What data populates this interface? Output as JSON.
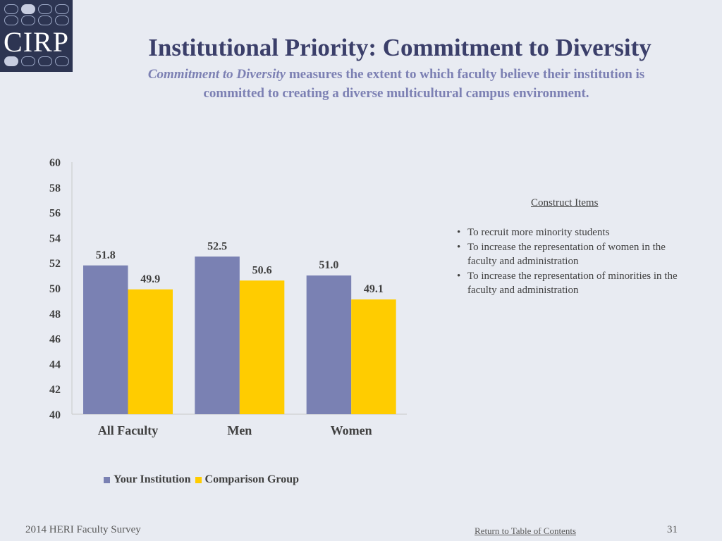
{
  "logo": {
    "text": "CIRP"
  },
  "title": "Institutional Priority: Commitment to Diversity",
  "subtitle": {
    "emphasis": "Commitment to Diversity",
    "line1_rest": " measures the extent to which faculty believe their institution is",
    "line2": "committed to creating a diverse multicultural campus environment."
  },
  "colors": {
    "your_institution": "#7a81b3",
    "comparison_group": "#ffcc00"
  },
  "chart_data": {
    "type": "bar",
    "categories": [
      "All Faculty",
      "Men",
      "Women"
    ],
    "series": [
      {
        "name": "Your Institution",
        "values": [
          51.8,
          52.5,
          51.0
        ],
        "labels": [
          "51.8",
          "52.5",
          "51.0"
        ]
      },
      {
        "name": "Comparison Group",
        "values": [
          49.9,
          50.6,
          49.1
        ],
        "labels": [
          "49.9",
          "50.6",
          "49.1"
        ]
      }
    ],
    "ylim": [
      40,
      60
    ],
    "yticks": [
      "40",
      "42",
      "44",
      "46",
      "48",
      "50",
      "52",
      "54",
      "56",
      "58",
      "60"
    ],
    "title": "",
    "xlabel": "",
    "ylabel": "",
    "legend": "bottom"
  },
  "construct": {
    "title": "Construct Items",
    "items": [
      "To recruit more minority students",
      "To increase the representation of women in the faculty and administration",
      "To increase the representation of minorities in the faculty and administration"
    ]
  },
  "footer": {
    "survey": "2014 HERI Faculty Survey",
    "link": "Return to Table of Contents",
    "page": "31"
  }
}
